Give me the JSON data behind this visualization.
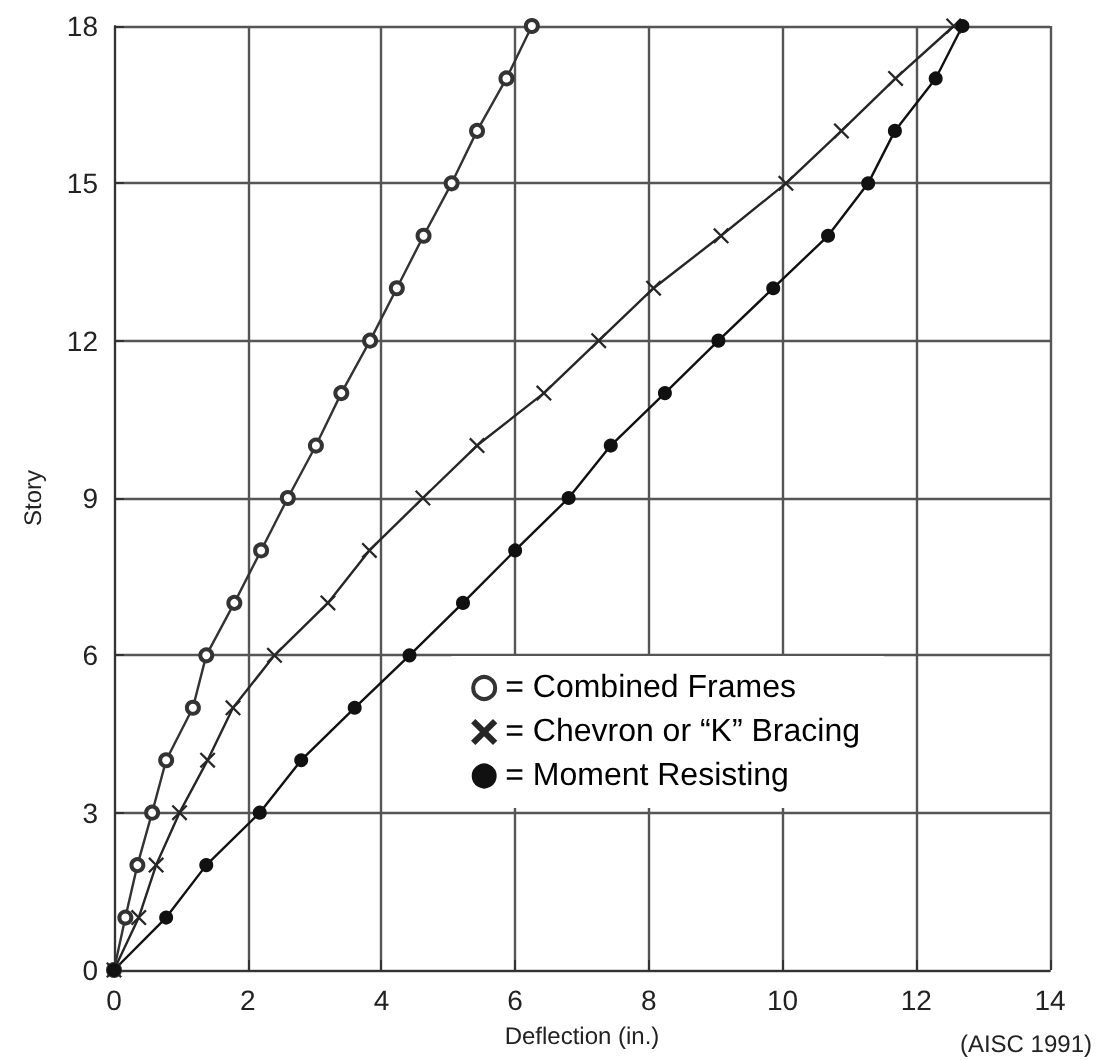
{
  "chart_data": {
    "type": "line",
    "xlabel": "Deflection (in.)",
    "ylabel": "Story",
    "xlim": [
      0,
      14
    ],
    "xticks": [
      0,
      2,
      4,
      6,
      8,
      10,
      12,
      14
    ],
    "ylim": [
      0,
      18
    ],
    "yticks": [
      0,
      3,
      6,
      9,
      12,
      15,
      18
    ],
    "grid": true,
    "legend": "bottom right",
    "annotations": [
      "(AISC 1991)"
    ],
    "series": [
      {
        "name": "= Combined Frames",
        "color": "#333333",
        "marker": "open circle",
        "x": [
          0,
          0.17,
          0.35,
          0.57,
          0.78,
          1.18,
          1.38,
          1.8,
          2.2,
          2.6,
          3.02,
          3.4,
          3.83,
          4.23,
          4.63,
          5.05,
          5.43,
          5.87,
          6.25
        ],
        "values": [
          0,
          1,
          2,
          3,
          4,
          5,
          6,
          7,
          8,
          9,
          10,
          11,
          12,
          13,
          14,
          15,
          16,
          17,
          18
        ]
      },
      {
        "name": "= Chevron or “K” Bracing",
        "color": "#262626",
        "marker": "cross",
        "x": [
          0,
          0.37,
          0.63,
          0.98,
          1.4,
          1.78,
          2.4,
          3.2,
          3.82,
          4.62,
          5.43,
          6.43,
          7.25,
          8.07,
          9.08,
          10.05,
          10.88,
          11.69,
          12.56
        ],
        "values": [
          0,
          1,
          2,
          3,
          4,
          5,
          6,
          7,
          8,
          9,
          10,
          11,
          12,
          13,
          14,
          15,
          16,
          17,
          18
        ]
      },
      {
        "name": "= Moment Resisting",
        "color": "#111111",
        "marker": "circle",
        "x": [
          0,
          0.78,
          1.38,
          2.18,
          2.8,
          3.6,
          4.42,
          5.22,
          6.0,
          6.8,
          7.43,
          8.24,
          9.04,
          9.86,
          10.68,
          11.28,
          11.68,
          12.29,
          12.69
        ],
        "values": [
          0,
          1,
          2,
          3,
          4,
          5,
          6,
          7,
          8,
          9,
          10,
          11,
          12,
          13,
          14,
          15,
          16,
          17,
          18
        ]
      }
    ]
  }
}
